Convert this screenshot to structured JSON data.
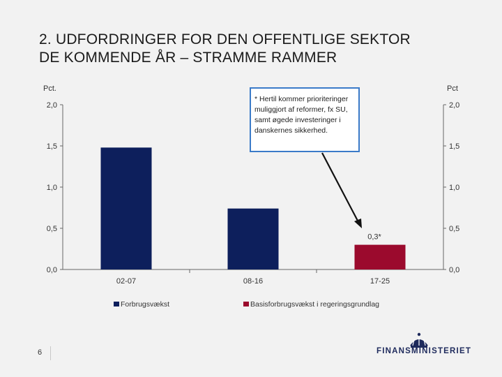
{
  "slide": {
    "title_line1": "2. UDFORDRINGER FOR DEN OFFENTLIGE SEKTOR",
    "title_line2": "DE KOMMENDE ÅR – STRAMME RAMMER",
    "page_number": "6",
    "logo_text": "FINANSMINISTERIET",
    "logo_icon": "crown-icon"
  },
  "annotation": {
    "text": "* Hertil kommer prioriteringer muliggjort af reformer, fx SU, samt øgede investeringer i danskernes sikkerhed."
  },
  "chart_data": {
    "type": "bar",
    "categories": [
      "02-07",
      "08-16",
      "17-25"
    ],
    "values": [
      1.48,
      0.74,
      0.3
    ],
    "data_labels": [
      "",
      "",
      "0,3*"
    ],
    "bar_colors": [
      "#0d1f5c",
      "#0d1f5c",
      "#9b0a2d"
    ],
    "ylabel_left": "Pct.",
    "ylabel_right": "Pct",
    "ylim": [
      0,
      2.0
    ],
    "yticks": [
      "0,0",
      "0,5",
      "1,0",
      "1,5",
      "2,0"
    ],
    "grid": false,
    "legend_position": "bottom",
    "legend": [
      {
        "name": "Forbrugsvækst",
        "color": "#0d1f5c"
      },
      {
        "name": "Basisforbrugsvækst i regeringsgrundlag",
        "color": "#9b0a2d"
      }
    ]
  }
}
